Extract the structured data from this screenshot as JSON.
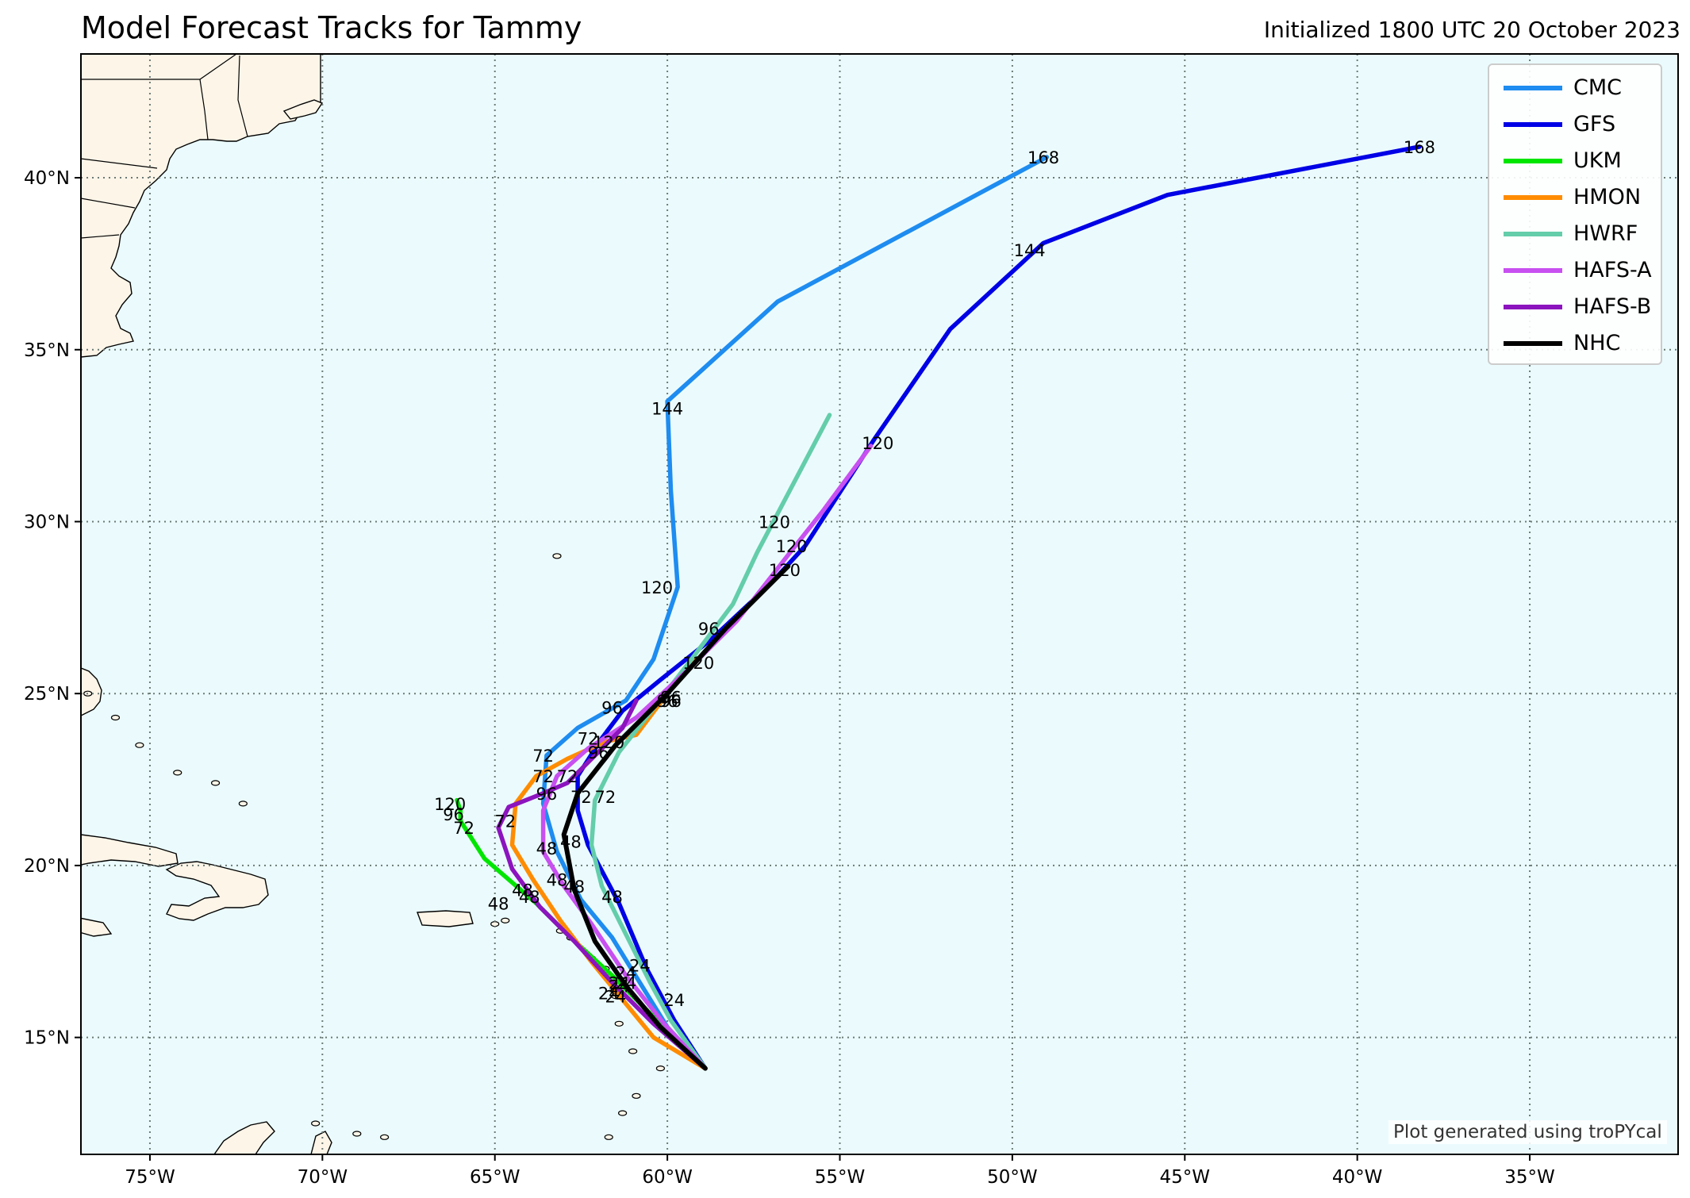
{
  "title": "Model Forecast Tracks for Tammy",
  "subtitle": "Initialized 1800 UTC 20 October 2023",
  "credit": "Plot generated using troPYcal",
  "map": {
    "lon_range": [
      -77,
      -30.7
    ],
    "lat_range": [
      11.6,
      43.6
    ],
    "ocean_color": "#ebfbfd",
    "land_color": "#fcf5e8",
    "grid": "dotted",
    "lon_ticks": [
      {
        "value": -75,
        "label": "75°W"
      },
      {
        "value": -70,
        "label": "70°W"
      },
      {
        "value": -65,
        "label": "65°W"
      },
      {
        "value": -60,
        "label": "60°W"
      },
      {
        "value": -55,
        "label": "55°W"
      },
      {
        "value": -50,
        "label": "50°W"
      },
      {
        "value": -45,
        "label": "45°W"
      },
      {
        "value": -40,
        "label": "40°W"
      },
      {
        "value": -35,
        "label": "35°W"
      }
    ],
    "lat_ticks": [
      {
        "value": 15,
        "label": "15°N"
      },
      {
        "value": 20,
        "label": "20°N"
      },
      {
        "value": 25,
        "label": "25°N"
      },
      {
        "value": 30,
        "label": "30°N"
      },
      {
        "value": 35,
        "label": "35°N"
      },
      {
        "value": 40,
        "label": "40°N"
      }
    ]
  },
  "legend": {
    "placement": "top-right",
    "items": [
      {
        "label": "CMC",
        "color": "#1e8cf0"
      },
      {
        "label": "GFS",
        "color": "#0000e6"
      },
      {
        "label": "UKM",
        "color": "#00e600"
      },
      {
        "label": "HMON",
        "color": "#ff8c00"
      },
      {
        "label": "HWRF",
        "color": "#64cdaa"
      },
      {
        "label": "HAFS-A",
        "color": "#c850f0"
      },
      {
        "label": "HAFS-B",
        "color": "#8c14be"
      },
      {
        "label": "NHC",
        "color": "#000000"
      }
    ]
  },
  "tracks": [
    {
      "model": "CMC",
      "color": "#1e8cf0",
      "points": [
        [
          -58.9,
          14.1
        ],
        [
          -60.0,
          15.3
        ],
        [
          -60.8,
          16.6
        ],
        [
          -61.6,
          17.9
        ],
        [
          -62.5,
          19.0
        ],
        [
          -63.2,
          20.4
        ],
        [
          -63.6,
          21.8
        ],
        [
          -63.5,
          23.2
        ],
        [
          -62.6,
          24.0
        ],
        [
          -61.2,
          24.8
        ],
        [
          -60.4,
          26.0
        ],
        [
          -59.7,
          28.1
        ],
        [
          -59.9,
          30.9
        ],
        [
          -60.0,
          33.5
        ],
        [
          -56.8,
          36.4
        ],
        [
          -49.0,
          40.6
        ]
      ],
      "labels": [
        {
          "text": "24",
          "lon": -61.4,
          "lat": 16.5
        },
        {
          "text": "48",
          "lon": -63.5,
          "lat": 20.5
        },
        {
          "text": "72",
          "lon": -63.6,
          "lat": 23.2
        },
        {
          "text": "96",
          "lon": -61.6,
          "lat": 24.6
        },
        {
          "text": "120",
          "lon": -60.3,
          "lat": 28.1
        },
        {
          "text": "144",
          "lon": -60.0,
          "lat": 33.3
        },
        {
          "text": "168",
          "lon": -49.1,
          "lat": 40.6
        }
      ]
    },
    {
      "model": "GFS",
      "color": "#0000e6",
      "points": [
        [
          -58.9,
          14.1
        ],
        [
          -59.8,
          15.5
        ],
        [
          -60.6,
          17.0
        ],
        [
          -61.4,
          18.9
        ],
        [
          -62.3,
          20.6
        ],
        [
          -62.6,
          21.6
        ],
        [
          -62.6,
          22.6
        ],
        [
          -61.9,
          23.7
        ],
        [
          -61.3,
          24.5
        ],
        [
          -60.2,
          25.4
        ],
        [
          -58.7,
          26.6
        ],
        [
          -57.0,
          28.2
        ],
        [
          -56.0,
          29.3
        ],
        [
          -54.0,
          32.4
        ],
        [
          -51.8,
          35.6
        ],
        [
          -49.1,
          38.1
        ],
        [
          -45.5,
          39.5
        ],
        [
          -38.2,
          40.9
        ]
      ],
      "labels": [
        {
          "text": "24",
          "lon": -60.8,
          "lat": 17.1
        },
        {
          "text": "48",
          "lon": -62.8,
          "lat": 20.7
        },
        {
          "text": "72",
          "lon": -62.3,
          "lat": 23.7
        },
        {
          "text": "96",
          "lon": -58.8,
          "lat": 26.9
        },
        {
          "text": "120",
          "lon": -53.9,
          "lat": 32.3
        },
        {
          "text": "144",
          "lon": -49.5,
          "lat": 37.9
        },
        {
          "text": "168",
          "lon": -38.2,
          "lat": 40.9
        }
      ]
    },
    {
      "model": "UKM",
      "color": "#00e600",
      "points": [
        [
          -58.9,
          14.1
        ],
        [
          -60.2,
          15.4
        ],
        [
          -61.6,
          16.8
        ],
        [
          -62.8,
          17.9
        ],
        [
          -63.8,
          18.9
        ],
        [
          -65.3,
          20.2
        ],
        [
          -66.0,
          21.3
        ],
        [
          -66.0,
          21.6
        ],
        [
          -66.1,
          21.9
        ]
      ],
      "labels": [
        {
          "text": "24",
          "lon": -61.4,
          "lat": 16.6
        },
        {
          "text": "48",
          "lon": -64.9,
          "lat": 18.9
        },
        {
          "text": "72",
          "lon": -65.9,
          "lat": 21.1
        },
        {
          "text": "96",
          "lon": -66.2,
          "lat": 21.5
        },
        {
          "text": "120",
          "lon": -66.3,
          "lat": 21.8
        }
      ]
    },
    {
      "model": "HMON",
      "color": "#ff8c00",
      "points": [
        [
          -58.9,
          14.1
        ],
        [
          -60.4,
          15.0
        ],
        [
          -61.3,
          16.1
        ],
        [
          -62.2,
          17.2
        ],
        [
          -63.1,
          18.4
        ],
        [
          -63.9,
          19.6
        ],
        [
          -64.5,
          20.6
        ],
        [
          -64.4,
          21.8
        ],
        [
          -63.8,
          22.6
        ],
        [
          -62.9,
          23.1
        ],
        [
          -61.8,
          23.6
        ],
        [
          -60.9,
          23.8
        ],
        [
          -60.0,
          25.0
        ],
        [
          -59.2,
          26.0
        ]
      ],
      "labels": [
        {
          "text": "24",
          "lon": -61.5,
          "lat": 16.2
        },
        {
          "text": "48",
          "lon": -64.2,
          "lat": 19.3
        },
        {
          "text": "72",
          "lon": -63.6,
          "lat": 22.6
        },
        {
          "text": "96",
          "lon": -59.9,
          "lat": 24.8
        },
        {
          "text": "120",
          "lon": -59.1,
          "lat": 25.9
        }
      ]
    },
    {
      "model": "HWRF",
      "color": "#64cdaa",
      "points": [
        [
          -58.9,
          14.1
        ],
        [
          -59.9,
          15.5
        ],
        [
          -60.5,
          16.6
        ],
        [
          -61.2,
          18.0
        ],
        [
          -61.9,
          19.4
        ],
        [
          -62.2,
          20.6
        ],
        [
          -62.1,
          21.9
        ],
        [
          -61.4,
          23.3
        ],
        [
          -60.3,
          24.7
        ],
        [
          -59.3,
          26.0
        ],
        [
          -58.1,
          27.6
        ],
        [
          -57.4,
          29.1
        ],
        [
          -55.3,
          33.1
        ]
      ],
      "labels": [
        {
          "text": "24",
          "lon": -59.8,
          "lat": 16.1
        },
        {
          "text": "48",
          "lon": -61.6,
          "lat": 19.1
        },
        {
          "text": "72",
          "lon": -61.8,
          "lat": 22.0
        },
        {
          "text": "96",
          "lon": -60.0,
          "lat": 24.8
        },
        {
          "text": "120",
          "lon": -56.9,
          "lat": 30.0
        }
      ]
    },
    {
      "model": "HAFS-A",
      "color": "#c850f0",
      "points": [
        [
          -58.9,
          14.1
        ],
        [
          -60.1,
          15.4
        ],
        [
          -61.2,
          16.8
        ],
        [
          -62.2,
          18.3
        ],
        [
          -63.0,
          19.4
        ],
        [
          -63.6,
          20.4
        ],
        [
          -63.6,
          21.6
        ],
        [
          -63.2,
          22.6
        ],
        [
          -62.3,
          23.4
        ],
        [
          -60.9,
          24.3
        ],
        [
          -59.5,
          25.6
        ],
        [
          -58.0,
          27.1
        ],
        [
          -56.6,
          28.9
        ],
        [
          -55.5,
          30.3
        ],
        [
          -54.1,
          32.2
        ]
      ],
      "labels": [
        {
          "text": "24",
          "lon": -61.2,
          "lat": 16.9
        },
        {
          "text": "48",
          "lon": -63.2,
          "lat": 19.6
        },
        {
          "text": "72",
          "lon": -62.9,
          "lat": 22.6
        },
        {
          "text": "96",
          "lon": -62.0,
          "lat": 23.3
        },
        {
          "text": "120",
          "lon": -56.4,
          "lat": 29.3
        }
      ]
    },
    {
      "model": "HAFS-B",
      "color": "#8c14be",
      "points": [
        [
          -58.9,
          14.1
        ],
        [
          -60.4,
          15.4
        ],
        [
          -61.6,
          16.6
        ],
        [
          -62.7,
          17.8
        ],
        [
          -63.7,
          18.8
        ],
        [
          -64.5,
          19.9
        ],
        [
          -64.9,
          21.1
        ],
        [
          -64.6,
          21.7
        ],
        [
          -63.6,
          22.1
        ],
        [
          -62.9,
          22.4
        ],
        [
          -62.0,
          23.3
        ],
        [
          -61.3,
          24.0
        ],
        [
          -60.9,
          24.8
        ]
      ],
      "labels": [
        {
          "text": "24",
          "lon": -61.7,
          "lat": 16.3
        },
        {
          "text": "48",
          "lon": -64.0,
          "lat": 19.1
        },
        {
          "text": "72",
          "lon": -64.7,
          "lat": 21.3
        },
        {
          "text": "96",
          "lon": -63.5,
          "lat": 22.1
        },
        {
          "text": "120",
          "lon": -61.7,
          "lat": 23.6
        }
      ]
    },
    {
      "model": "NHC",
      "color": "#000000",
      "points": [
        [
          -58.9,
          14.1
        ],
        [
          -60.2,
          15.3
        ],
        [
          -61.2,
          16.5
        ],
        [
          -62.1,
          17.8
        ],
        [
          -62.7,
          19.3
        ],
        [
          -63.0,
          20.9
        ],
        [
          -62.6,
          22.1
        ],
        [
          -61.5,
          23.5
        ],
        [
          -60.0,
          25.0
        ],
        [
          -58.3,
          26.9
        ],
        [
          -56.5,
          28.7
        ]
      ],
      "labels": [
        {
          "text": "24",
          "lon": -61.2,
          "lat": 16.6
        },
        {
          "text": "48",
          "lon": -62.7,
          "lat": 19.4
        },
        {
          "text": "72",
          "lon": -62.5,
          "lat": 22.0
        },
        {
          "text": "96",
          "lon": -59.9,
          "lat": 24.9
        },
        {
          "text": "120",
          "lon": -56.6,
          "lat": 28.6
        }
      ]
    }
  ]
}
